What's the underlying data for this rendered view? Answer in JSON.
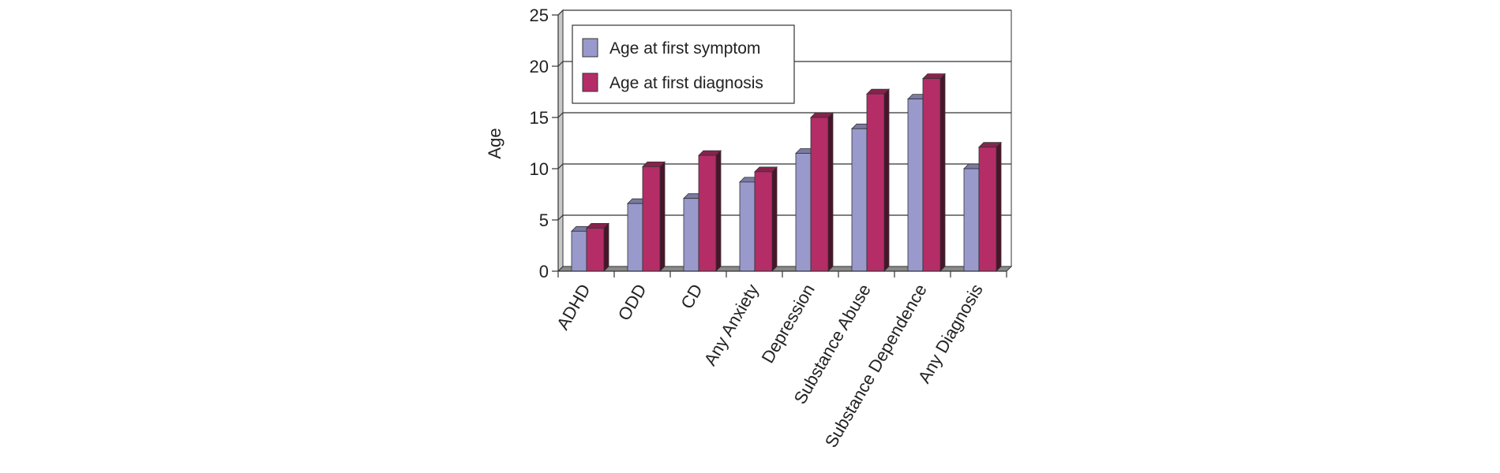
{
  "chart_data": {
    "type": "bar",
    "title": "",
    "xlabel": "",
    "ylabel": "Age",
    "ylim": [
      0,
      25
    ],
    "yticks": [
      0,
      5,
      10,
      15,
      20,
      25
    ],
    "grid": true,
    "legend_position": "top-left",
    "categories": [
      "ADHD",
      "ODD",
      "CD",
      "Any Anxiety",
      "Depression",
      "Substance Abuse",
      "Substance Dependence",
      "Any Diagnosis"
    ],
    "series": [
      {
        "name": "Age at first symptom",
        "color": "#9999cc",
        "values": [
          3.9,
          6.6,
          7.1,
          8.7,
          11.5,
          13.9,
          16.8,
          10.0
        ]
      },
      {
        "name": "Age at first diagnosis",
        "color": "#b52d67",
        "values": [
          4.2,
          10.2,
          11.3,
          9.7,
          15.0,
          17.3,
          18.8,
          12.1
        ]
      }
    ]
  }
}
